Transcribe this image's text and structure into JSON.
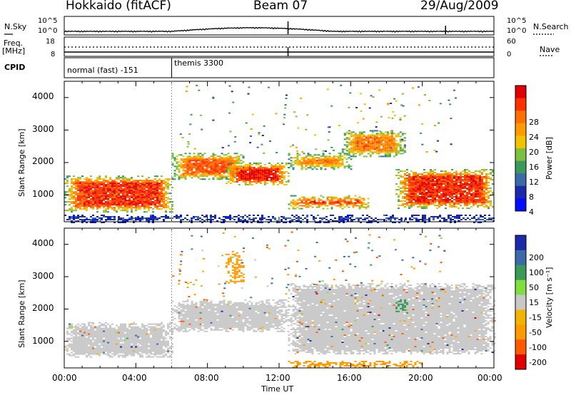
{
  "header": {
    "station": "Hokkaido (fitACF)",
    "beam": "Beam 07",
    "date": "29/Aug/2009"
  },
  "strip": {
    "nsky_label": "N.Sky",
    "nsearch_label": "N.Search",
    "nsky_ticks": [
      "10^5",
      "10^0"
    ],
    "nsky_right_ticks": [
      "10^5",
      "10^0"
    ],
    "freq_label_1": "Freq.",
    "freq_label_2": "[MHz]",
    "freq_ticks": [
      "18",
      "8"
    ],
    "nave_label": "Nave",
    "nave_ticks": [
      "60",
      "0"
    ],
    "cpid_label": "CPID",
    "cpid_mode_1": "normal (fast) -151",
    "cpid_mode_2": "themis 3300"
  },
  "power_colorbar": {
    "title": "Power [dB]",
    "ticks": [
      "28",
      "24",
      "20",
      "16",
      "12",
      "8",
      "4"
    ],
    "colors": [
      "#e00000",
      "#ff3000",
      "#ff7000",
      "#ff9a00",
      "#f2c400",
      "#7fbf3f",
      "#3a9a5a",
      "#3a6aaa",
      "#1a2aaa",
      "#0010ff"
    ]
  },
  "velocity_colorbar": {
    "title": "Velocity [m s⁻¹]",
    "ticks": [
      "200",
      "100",
      "50",
      "15",
      "-15",
      "-50",
      "-100",
      "-200"
    ],
    "colors": [
      "#1a2aaa",
      "#3a6aaa",
      "#3a9a5a",
      "#7fdf3f",
      "#c8c8c8",
      "#f2b400",
      "#ff9a00",
      "#ff5a00",
      "#e00000"
    ]
  },
  "axes": {
    "ylabel": "Slant Range [km]",
    "xlabel": "Time UT",
    "y_ticks": [
      "1000",
      "2000",
      "3000",
      "4000"
    ],
    "x_ticks": [
      "00:00",
      "04:00",
      "08:00",
      "12:00",
      "16:00",
      "20:00",
      "00:00"
    ]
  },
  "chart_data": [
    {
      "type": "heatmap",
      "title": "",
      "quantity": "Power",
      "units": "dB",
      "xlabel": "Time UT",
      "ylabel": "Slant Range [km]",
      "x_range_hours": [
        0,
        24
      ],
      "ylim_km": [
        180,
        4500
      ],
      "color_range": [
        0,
        30
      ],
      "regions": [
        {
          "t": [
            0,
            6
          ],
          "r": [
            500,
            1600
          ],
          "value": 26
        },
        {
          "t": [
            6,
            10
          ],
          "r": [
            1500,
            2300
          ],
          "value": 24
        },
        {
          "t": [
            9,
            12.5
          ],
          "r": [
            1300,
            2000
          ],
          "value": 28
        },
        {
          "t": [
            12.5,
            17
          ],
          "r": [
            600,
            1000
          ],
          "value": 28
        },
        {
          "t": [
            12.5,
            16
          ],
          "r": [
            1800,
            2300
          ],
          "value": 22
        },
        {
          "t": [
            15.5,
            19
          ],
          "r": [
            2200,
            3000
          ],
          "value": 22
        },
        {
          "t": [
            18.5,
            24
          ],
          "r": [
            600,
            1800
          ],
          "value": 26
        },
        {
          "t": [
            0,
            24
          ],
          "r": [
            180,
            400
          ],
          "value": 8
        }
      ]
    },
    {
      "type": "heatmap",
      "title": "",
      "quantity": "Velocity",
      "units": "m s^-1",
      "xlabel": "Time UT",
      "ylabel": "Slant Range [km]",
      "x_range_hours": [
        0,
        24
      ],
      "ylim_km": [
        180,
        4500
      ],
      "color_range": [
        -200,
        200
      ],
      "regions": [
        {
          "t": [
            0,
            6
          ],
          "r": [
            500,
            1600
          ],
          "value": 0
        },
        {
          "t": [
            6,
            12.5
          ],
          "r": [
            1300,
            2300
          ],
          "value": 0
        },
        {
          "t": [
            12.5,
            24
          ],
          "r": [
            600,
            2800
          ],
          "value": 0
        },
        {
          "t": [
            9,
            10
          ],
          "r": [
            2800,
            3800
          ],
          "value": -60
        },
        {
          "t": [
            18.5,
            19.2
          ],
          "r": [
            1900,
            2300
          ],
          "value": 40
        },
        {
          "t": [
            12.5,
            20
          ],
          "r": [
            200,
            400
          ],
          "value": -60
        }
      ]
    }
  ]
}
